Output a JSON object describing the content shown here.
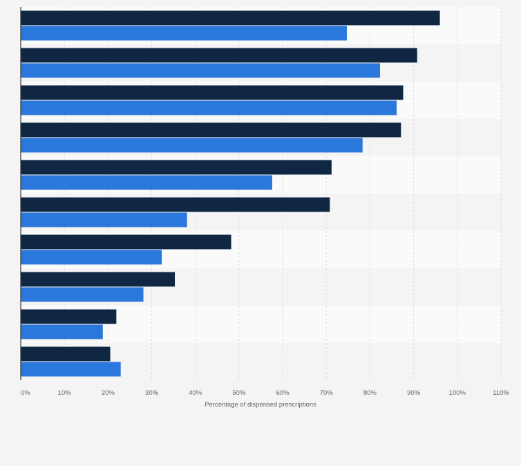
{
  "chart_data": {
    "type": "bar",
    "orientation": "horizontal",
    "title": "",
    "xlabel": "Percentage of dispensed prescriptions",
    "ylabel": "",
    "xlim": [
      0,
      110
    ],
    "x_ticks": [
      "0%",
      "10%",
      "20%",
      "30%",
      "40%",
      "50%",
      "60%",
      "70%",
      "80%",
      "90%",
      "100%",
      "110%"
    ],
    "grid": "vertical",
    "legend": "none",
    "category_labels_visible": false,
    "categories": [
      "",
      "",
      "",
      "",
      "",
      "",
      "",
      "",
      "",
      ""
    ],
    "series": [
      {
        "color": "#0f2742",
        "values": [
          96,
          90.8,
          87.6,
          87.1,
          71.2,
          70.8,
          48.2,
          35.3,
          21.9,
          20.5
        ]
      },
      {
        "color": "#2a78dc",
        "values": [
          74.7,
          82.3,
          86.1,
          78.3,
          57.6,
          38.1,
          32.3,
          28.1,
          18.8,
          22.9
        ]
      }
    ]
  }
}
